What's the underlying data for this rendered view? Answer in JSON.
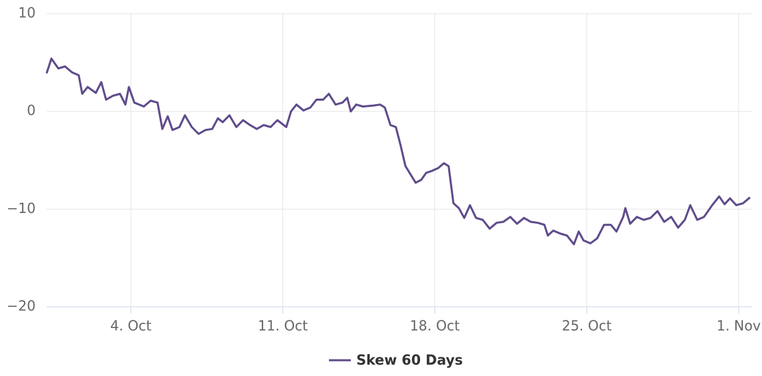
{
  "chart_data": {
    "type": "line",
    "xlim": [
      0.12,
      32.6
    ],
    "ylim": [
      -20,
      10
    ],
    "xticks": [
      {
        "value": 4,
        "label": "4. Oct"
      },
      {
        "value": 11,
        "label": "11. Oct"
      },
      {
        "value": 18,
        "label": "18. Oct"
      },
      {
        "value": 25,
        "label": "25. Oct"
      },
      {
        "value": 32,
        "label": "1. Nov"
      }
    ],
    "yticks": [
      {
        "value": -20,
        "label": "−20"
      },
      {
        "value": -10,
        "label": "−10"
      },
      0,
      10
    ],
    "grid": true,
    "legend": "bottom",
    "series": [
      {
        "name": "Skew 60 Days",
        "color": "#5f4b8b",
        "x": [
          0.12,
          0.34,
          0.66,
          0.97,
          1.29,
          1.6,
          1.76,
          2.01,
          2.39,
          2.64,
          2.86,
          3.18,
          3.5,
          3.75,
          3.91,
          4.16,
          4.6,
          4.91,
          5.23,
          5.45,
          5.7,
          5.92,
          6.24,
          6.49,
          6.81,
          7.12,
          7.44,
          7.75,
          8.01,
          8.23,
          8.54,
          8.86,
          9.17,
          9.49,
          9.8,
          10.12,
          10.44,
          10.75,
          11.16,
          11.38,
          11.63,
          11.95,
          12.27,
          12.55,
          12.86,
          13.12,
          13.43,
          13.75,
          13.97,
          14.13,
          14.38,
          14.69,
          15.17,
          15.48,
          15.7,
          15.96,
          16.21,
          16.43,
          16.65,
          16.9,
          17.12,
          17.38,
          17.6,
          17.85,
          18.16,
          18.42,
          18.64,
          18.86,
          19.11,
          19.36,
          19.62,
          19.9,
          20.21,
          20.53,
          20.85,
          21.16,
          21.48,
          21.79,
          22.11,
          22.42,
          22.74,
          23.05,
          23.21,
          23.46,
          23.78,
          24.09,
          24.41,
          24.63,
          24.85,
          25.17,
          25.48,
          25.8,
          26.11,
          26.37,
          26.68,
          26.78,
          27.0,
          27.31,
          27.63,
          27.94,
          28.26,
          28.57,
          28.89,
          29.21,
          29.52,
          29.77,
          30.09,
          30.4,
          30.78,
          31.1,
          31.35,
          31.6,
          31.89,
          32.2,
          32.52
        ],
        "values": [
          3.9,
          5.4,
          4.4,
          4.6,
          4.0,
          3.7,
          1.8,
          2.5,
          1.9,
          3.0,
          1.2,
          1.6,
          1.8,
          0.7,
          2.5,
          0.9,
          0.5,
          1.1,
          0.9,
          -1.8,
          -0.5,
          -1.9,
          -1.6,
          -0.4,
          -1.6,
          -2.3,
          -1.9,
          -1.8,
          -0.7,
          -1.1,
          -0.4,
          -1.6,
          -0.9,
          -1.4,
          -1.8,
          -1.4,
          -1.6,
          -0.9,
          -1.6,
          0,
          0.7,
          0.1,
          0.4,
          1.2,
          1.2,
          1.8,
          0.7,
          0.9,
          1.4,
          0,
          0.7,
          0.5,
          0.6,
          0.7,
          0.4,
          -1.4,
          -1.6,
          -3.5,
          -5.6,
          -6.5,
          -7.3,
          -7.0,
          -6.3,
          -6.1,
          -5.8,
          -5.3,
          -5.6,
          -9.4,
          -9.9,
          -10.9,
          -9.6,
          -10.9,
          -11.1,
          -12.0,
          -11.4,
          -11.3,
          -10.8,
          -11.5,
          -10.9,
          -11.3,
          -11.4,
          -11.6,
          -12.7,
          -12.2,
          -12.5,
          -12.7,
          -13.6,
          -12.3,
          -13.2,
          -13.5,
          -13.0,
          -11.6,
          -11.6,
          -12.3,
          -10.8,
          -9.9,
          -11.5,
          -10.8,
          -11.1,
          -10.9,
          -10.2,
          -11.3,
          -10.8,
          -11.9,
          -11.1,
          -9.6,
          -11.1,
          -10.8,
          -9.6,
          -8.7,
          -9.5,
          -8.9,
          -9.6,
          -9.4,
          -8.8
        ]
      }
    ]
  }
}
